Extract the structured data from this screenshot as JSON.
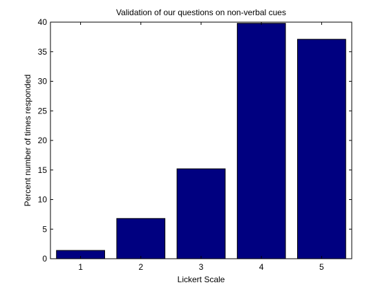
{
  "colors": {
    "bar": "#000080",
    "axis": "#000000",
    "background": "#ffffff"
  },
  "chart_data": {
    "type": "bar",
    "title": "Validation of our questions on non-verbal cues",
    "xlabel": "Lickert Scale",
    "ylabel": "Percent number of times responded",
    "categories": [
      "1",
      "2",
      "3",
      "4",
      "5"
    ],
    "values": [
      1.4,
      6.8,
      15.2,
      39.8,
      37.1
    ],
    "xlim": [
      0.5,
      5.5
    ],
    "ylim": [
      0,
      40
    ],
    "yticks": [
      "0",
      "5",
      "10",
      "15",
      "20",
      "25",
      "30",
      "35",
      "40"
    ],
    "grid": false,
    "legend": "none"
  }
}
